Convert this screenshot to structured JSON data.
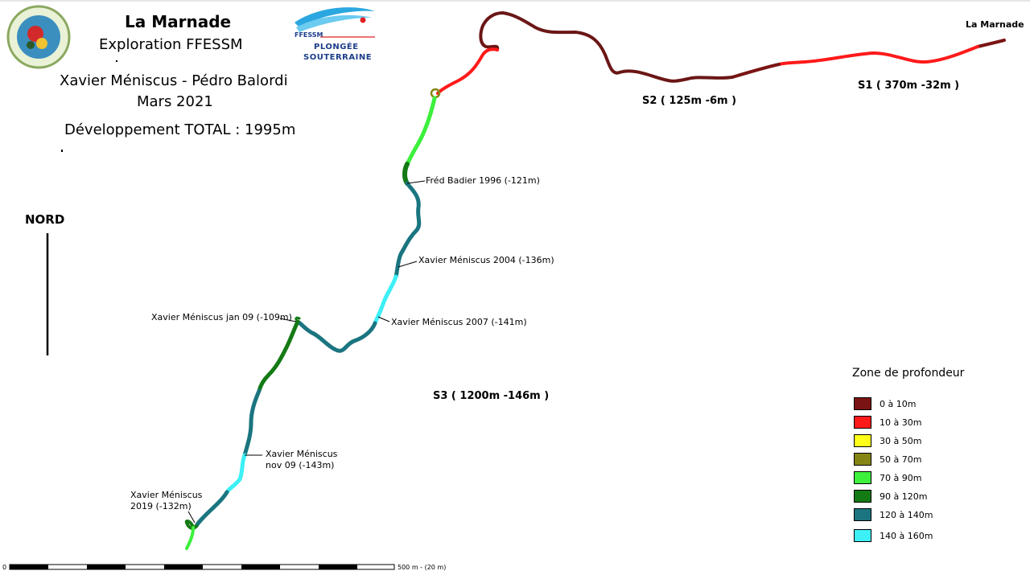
{
  "header": {
    "title": "La Marnade",
    "subtitle": "Exploration FFESSM",
    "authors": "Xavier Méniscus - Pédro Balordi",
    "date": "Mars 2021",
    "total_length": "Développement TOTAL : 1995m"
  },
  "logo_right": {
    "brand": "FFESSM",
    "line1": "PLONGÉE",
    "line2": "SOUTERRAINE"
  },
  "north": {
    "label": "NORD"
  },
  "entrance": {
    "label": "La Marnade"
  },
  "sumps": [
    {
      "label": "S1 ( 370m -32m )"
    },
    {
      "label": "S2 ( 125m -6m )"
    },
    {
      "label": "S3 ( 1200m -146m )"
    }
  ],
  "annotations": [
    {
      "line1": "Fréd Badier 1996 (-121m)"
    },
    {
      "line1": "Xavier Méniscus 2004 (-136m)"
    },
    {
      "line1": "Xavier Méniscus 2007 (-141m)"
    },
    {
      "line1": "Xavier Méniscus jan 09 (-109m)"
    },
    {
      "line1": "Xavier Méniscus",
      "line2": "nov 09 (-143m)"
    },
    {
      "line1": "Xavier Méniscus",
      "line2": "2019 (-132m)"
    }
  ],
  "legend": {
    "title": "Zone de profondeur",
    "items": [
      {
        "label": "0 à 10m",
        "color": "#7a1414"
      },
      {
        "label": "10 à 30m",
        "color": "#ff1a1a"
      },
      {
        "label": "30 à 50m",
        "color": "#ffff1a"
      },
      {
        "label": "50 à 70m",
        "color": "#858514"
      },
      {
        "label": "70 à 90m",
        "color": "#3cf03c"
      },
      {
        "label": "90 à 120m",
        "color": "#147a14"
      },
      {
        "label": "120 à 140m",
        "color": "#1a7580"
      },
      {
        "label": "140 à 160m",
        "color": "#3cf0f5"
      }
    ]
  },
  "scale": {
    "start_label": "0",
    "end_label": "500 m - (20 m)"
  }
}
